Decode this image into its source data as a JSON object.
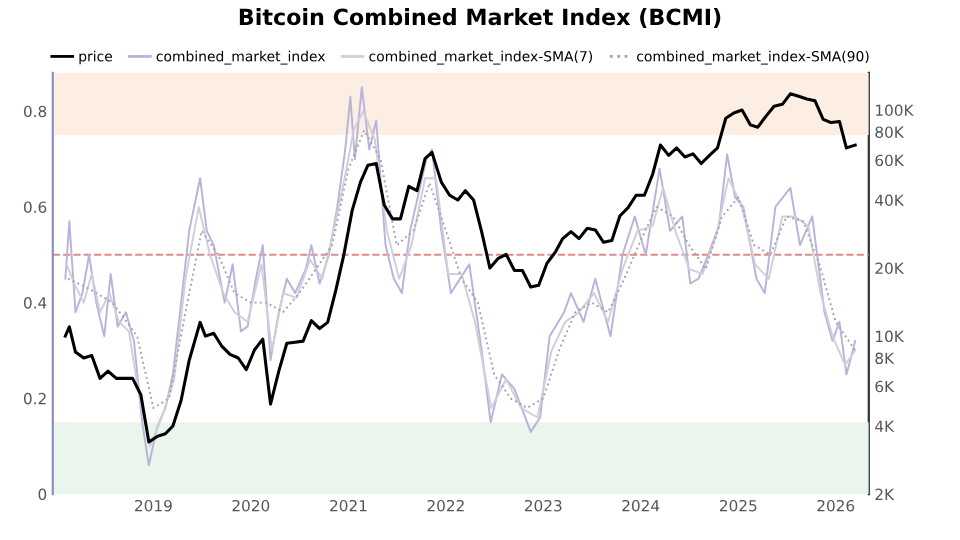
{
  "chart_data": {
    "type": "line",
    "title": "Bitcoin Combined Market Index (BCMI)",
    "xlim": [
      "2017-12-20",
      "2026-05-05"
    ],
    "xticks": [
      {
        "value": "2019-01-01",
        "label": "2019"
      },
      {
        "value": "2020-01-01",
        "label": "2020"
      },
      {
        "value": "2021-01-01",
        "label": "2021"
      },
      {
        "value": "2022-01-01",
        "label": "2022"
      },
      {
        "value": "2023-01-01",
        "label": "2023"
      },
      {
        "value": "2024-01-01",
        "label": "2024"
      },
      {
        "value": "2025-01-01",
        "label": "2025"
      },
      {
        "value": "2026-01-01",
        "label": "2026"
      }
    ],
    "ylim": [
      0,
      0.88
    ],
    "yticks": [
      0,
      0.2,
      0.4,
      0.6,
      0.8
    ],
    "y2lim": [
      2000,
      146000
    ],
    "log": "y2",
    "y2ticks": [
      {
        "value": 2000,
        "label": "2K"
      },
      {
        "value": 4000,
        "label": "4K"
      },
      {
        "value": 6000,
        "label": "6K"
      },
      {
        "value": 8000,
        "label": "8K"
      },
      {
        "value": 10000,
        "label": "10K"
      },
      {
        "value": 20000,
        "label": "20K"
      },
      {
        "value": 40000,
        "label": "40K"
      },
      {
        "value": 60000,
        "label": "60K"
      },
      {
        "value": 80000,
        "label": "80K"
      },
      {
        "value": 100000,
        "label": "100K"
      }
    ],
    "legend": "top",
    "grid": false,
    "bands": [
      {
        "axis": "y",
        "from": 0.75,
        "to": 0.88,
        "color": "#fdeee3"
      },
      {
        "axis": "y",
        "from": 0,
        "to": 0.15,
        "color": "#eaf5ed"
      }
    ],
    "ref_lines": [
      {
        "axis": "y",
        "value": 0.5,
        "color": "#e08a8a",
        "line_style": "dashed"
      }
    ],
    "series": [
      {
        "name": "price",
        "color": "#000000",
        "axis": "y2",
        "line_style": "solid",
        "x": [
          "2018-02-05",
          "2018-02-20",
          "2018-03-15",
          "2018-04-15",
          "2018-05-15",
          "2018-06-15",
          "2018-07-15",
          "2018-08-15",
          "2018-09-15",
          "2018-10-15",
          "2018-11-15",
          "2018-12-15",
          "2019-01-15",
          "2019-02-15",
          "2019-03-15",
          "2019-04-15",
          "2019-05-15",
          "2019-06-25",
          "2019-07-15",
          "2019-08-15",
          "2019-09-15",
          "2019-10-15",
          "2019-11-15",
          "2019-12-15",
          "2020-01-15",
          "2020-02-15",
          "2020-03-15",
          "2020-04-15",
          "2020-05-15",
          "2020-06-15",
          "2020-07-15",
          "2020-08-15",
          "2020-09-15",
          "2020-10-15",
          "2020-11-15",
          "2020-12-15",
          "2021-01-15",
          "2021-02-15",
          "2021-03-15",
          "2021-04-15",
          "2021-05-15",
          "2021-06-15",
          "2021-07-15",
          "2021-08-15",
          "2021-09-15",
          "2021-10-15",
          "2021-11-10",
          "2021-12-15",
          "2022-01-15",
          "2022-02-15",
          "2022-03-15",
          "2022-04-15",
          "2022-05-15",
          "2022-06-15",
          "2022-07-15",
          "2022-08-15",
          "2022-09-15",
          "2022-10-15",
          "2022-11-15",
          "2022-12-15",
          "2023-01-15",
          "2023-02-15",
          "2023-03-15",
          "2023-04-15",
          "2023-05-15",
          "2023-06-15",
          "2023-07-15",
          "2023-08-15",
          "2023-09-15",
          "2023-10-15",
          "2023-11-15",
          "2023-12-15",
          "2024-01-15",
          "2024-02-15",
          "2024-03-15",
          "2024-04-15",
          "2024-05-15",
          "2024-06-15",
          "2024-07-15",
          "2024-08-15",
          "2024-09-15",
          "2024-10-15",
          "2024-11-15",
          "2024-12-15",
          "2025-01-15",
          "2025-02-15",
          "2025-03-15",
          "2025-04-15",
          "2025-05-15",
          "2025-06-15",
          "2025-07-15",
          "2025-08-15",
          "2025-09-15",
          "2025-10-15",
          "2025-11-15",
          "2025-12-15",
          "2026-01-15",
          "2026-02-10",
          "2026-03-15"
        ],
        "values": [
          10000,
          11000,
          8500,
          8000,
          8200,
          6500,
          7000,
          6500,
          6500,
          6500,
          5500,
          3400,
          3600,
          3700,
          4000,
          5200,
          7800,
          11500,
          10000,
          10300,
          9000,
          8300,
          8000,
          7100,
          8700,
          9700,
          5000,
          7000,
          9300,
          9400,
          9500,
          11700,
          10800,
          11500,
          16000,
          23000,
          36000,
          48000,
          57000,
          58000,
          38000,
          33000,
          33000,
          46000,
          44000,
          61000,
          65000,
          48000,
          42000,
          40000,
          44000,
          40000,
          29000,
          20000,
          22000,
          23000,
          19500,
          19500,
          16500,
          16800,
          21000,
          23500,
          27000,
          29000,
          27000,
          30000,
          29500,
          26000,
          26500,
          34000,
          37000,
          42000,
          42000,
          52000,
          70000,
          63000,
          68000,
          62000,
          64000,
          58000,
          63000,
          68000,
          92000,
          97000,
          100000,
          86000,
          84000,
          94000,
          104000,
          106000,
          118000,
          115000,
          112000,
          110000,
          91000,
          88000,
          89000,
          68000,
          70000
        ]
      },
      {
        "name": "combined_market_index",
        "color": "#b9b3da",
        "line_style": "solid",
        "x": [
          "2018-02-05",
          "2018-02-20",
          "2018-03-15",
          "2018-04-10",
          "2018-05-05",
          "2018-06-01",
          "2018-07-01",
          "2018-07-25",
          "2018-08-20",
          "2018-09-20",
          "2018-10-20",
          "2018-11-20",
          "2018-12-15",
          "2019-01-15",
          "2019-02-15",
          "2019-03-15",
          "2019-04-15",
          "2019-05-15",
          "2019-06-25",
          "2019-07-20",
          "2019-08-15",
          "2019-09-25",
          "2019-10-25",
          "2019-11-25",
          "2019-12-20",
          "2020-01-20",
          "2020-02-15",
          "2020-03-15",
          "2020-04-15",
          "2020-05-15",
          "2020-06-15",
          "2020-07-25",
          "2020-08-15",
          "2020-09-15",
          "2020-10-20",
          "2020-11-20",
          "2020-12-20",
          "2021-01-08",
          "2021-01-25",
          "2021-02-20",
          "2021-03-20",
          "2021-04-15",
          "2021-05-20",
          "2021-06-20",
          "2021-07-20",
          "2021-08-20",
          "2021-10-20",
          "2021-11-10",
          "2021-12-15",
          "2022-01-20",
          "2022-03-30",
          "2022-05-15",
          "2022-06-18",
          "2022-07-30",
          "2022-09-15",
          "2022-11-15",
          "2022-12-20",
          "2023-01-25",
          "2023-03-20",
          "2023-04-15",
          "2023-06-01",
          "2023-07-15",
          "2023-09-10",
          "2023-10-25",
          "2023-12-10",
          "2024-01-20",
          "2024-03-12",
          "2024-04-20",
          "2024-06-05",
          "2024-07-05",
          "2024-08-05",
          "2024-09-10",
          "2024-10-20",
          "2024-11-20",
          "2024-12-20",
          "2025-01-20",
          "2025-03-10",
          "2025-04-10",
          "2025-05-20",
          "2025-07-15",
          "2025-08-20",
          "2025-10-05",
          "2025-11-20",
          "2025-12-20",
          "2026-01-15",
          "2026-02-10",
          "2026-02-25",
          "2026-03-15"
        ],
        "values": [
          0.45,
          0.57,
          0.38,
          0.42,
          0.5,
          0.4,
          0.33,
          0.46,
          0.35,
          0.38,
          0.32,
          0.15,
          0.06,
          0.14,
          0.18,
          0.25,
          0.4,
          0.55,
          0.66,
          0.55,
          0.52,
          0.4,
          0.48,
          0.34,
          0.35,
          0.45,
          0.52,
          0.28,
          0.38,
          0.45,
          0.42,
          0.47,
          0.52,
          0.44,
          0.5,
          0.6,
          0.72,
          0.83,
          0.7,
          0.85,
          0.72,
          0.78,
          0.52,
          0.45,
          0.42,
          0.55,
          0.7,
          0.72,
          0.55,
          0.42,
          0.48,
          0.3,
          0.15,
          0.25,
          0.22,
          0.13,
          0.16,
          0.33,
          0.38,
          0.42,
          0.36,
          0.45,
          0.33,
          0.5,
          0.58,
          0.5,
          0.68,
          0.55,
          0.58,
          0.44,
          0.45,
          0.5,
          0.56,
          0.71,
          0.62,
          0.6,
          0.45,
          0.42,
          0.6,
          0.64,
          0.52,
          0.58,
          0.38,
          0.32,
          0.36,
          0.25,
          0.28,
          0.32
        ]
      },
      {
        "name": "combined_market_index-SMA(7)",
        "color": "#cfcfdc",
        "line_style": "solid",
        "x": [
          "2018-02-10",
          "2018-03-10",
          "2018-04-15",
          "2018-05-15",
          "2018-06-15",
          "2018-07-20",
          "2018-08-25",
          "2018-10-01",
          "2018-11-10",
          "2018-12-20",
          "2019-02-01",
          "2019-03-20",
          "2019-05-01",
          "2019-06-20",
          "2019-08-01",
          "2019-09-20",
          "2019-11-01",
          "2019-12-20",
          "2020-02-10",
          "2020-03-20",
          "2020-05-01",
          "2020-06-20",
          "2020-08-10",
          "2020-09-25",
          "2020-11-10",
          "2020-12-25",
          "2021-01-20",
          "2021-02-25",
          "2021-04-10",
          "2021-05-25",
          "2021-07-10",
          "2021-08-25",
          "2021-10-15",
          "2021-11-25",
          "2022-01-10",
          "2022-03-01",
          "2022-04-20",
          "2022-06-20",
          "2022-08-15",
          "2022-10-10",
          "2022-12-10",
          "2023-02-01",
          "2023-03-25",
          "2023-05-15",
          "2023-07-10",
          "2023-09-01",
          "2023-10-25",
          "2023-12-20",
          "2024-02-15",
          "2024-03-25",
          "2024-05-10",
          "2024-07-01",
          "2024-08-20",
          "2024-10-10",
          "2024-11-25",
          "2025-01-15",
          "2025-03-05",
          "2025-04-25",
          "2025-06-15",
          "2025-08-01",
          "2025-09-20",
          "2025-11-05",
          "2025-12-20",
          "2026-02-05",
          "2026-03-15"
        ],
        "values": [
          0.48,
          0.44,
          0.4,
          0.46,
          0.38,
          0.42,
          0.36,
          0.34,
          0.2,
          0.1,
          0.16,
          0.24,
          0.45,
          0.6,
          0.5,
          0.42,
          0.38,
          0.36,
          0.48,
          0.3,
          0.42,
          0.41,
          0.49,
          0.45,
          0.56,
          0.68,
          0.76,
          0.8,
          0.74,
          0.55,
          0.45,
          0.52,
          0.66,
          0.66,
          0.46,
          0.46,
          0.36,
          0.18,
          0.24,
          0.18,
          0.16,
          0.3,
          0.36,
          0.38,
          0.42,
          0.36,
          0.47,
          0.55,
          0.56,
          0.64,
          0.55,
          0.47,
          0.46,
          0.54,
          0.66,
          0.6,
          0.48,
          0.45,
          0.58,
          0.58,
          0.56,
          0.42,
          0.33,
          0.27,
          0.3
        ]
      },
      {
        "name": "combined_market_index-SMA(90)",
        "color": "#a3a3b4",
        "line_style": "dotted",
        "x": [
          "2018-02-15",
          "2018-05-01",
          "2018-08-01",
          "2018-11-01",
          "2019-01-01",
          "2019-03-01",
          "2019-05-01",
          "2019-07-01",
          "2019-09-01",
          "2019-11-01",
          "2020-01-01",
          "2020-03-01",
          "2020-05-01",
          "2020-07-01",
          "2020-09-01",
          "2020-11-01",
          "2021-01-01",
          "2021-03-01",
          "2021-05-01",
          "2021-07-01",
          "2021-09-01",
          "2021-11-01",
          "2022-01-01",
          "2022-03-01",
          "2022-05-01",
          "2022-07-01",
          "2022-09-01",
          "2022-11-01",
          "2023-01-01",
          "2023-03-01",
          "2023-05-01",
          "2023-07-01",
          "2023-09-01",
          "2023-11-01",
          "2024-01-01",
          "2024-03-01",
          "2024-05-01",
          "2024-07-01",
          "2024-09-01",
          "2024-11-01",
          "2025-01-01",
          "2025-03-01",
          "2025-05-01",
          "2025-07-01",
          "2025-09-01",
          "2025-11-01",
          "2026-01-01",
          "2026-03-15"
        ],
        "values": [
          0.45,
          0.43,
          0.4,
          0.33,
          0.18,
          0.2,
          0.38,
          0.55,
          0.5,
          0.42,
          0.4,
          0.4,
          0.38,
          0.42,
          0.47,
          0.52,
          0.68,
          0.76,
          0.7,
          0.52,
          0.55,
          0.65,
          0.55,
          0.45,
          0.4,
          0.25,
          0.2,
          0.18,
          0.2,
          0.3,
          0.38,
          0.4,
          0.38,
          0.45,
          0.53,
          0.6,
          0.58,
          0.52,
          0.47,
          0.58,
          0.62,
          0.52,
          0.5,
          0.58,
          0.57,
          0.48,
          0.36,
          0.3
        ]
      }
    ]
  }
}
